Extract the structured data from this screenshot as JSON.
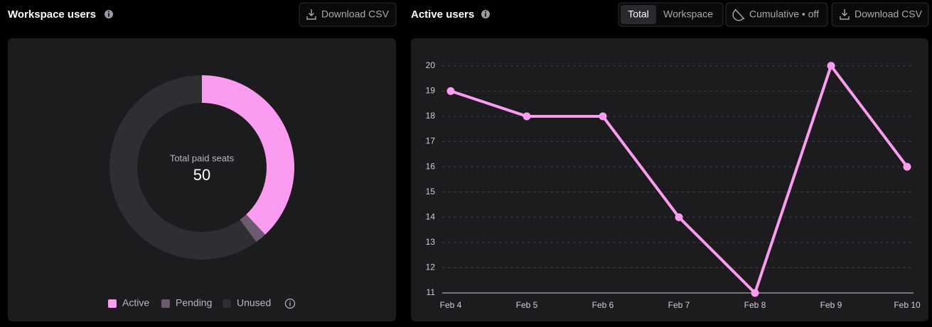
{
  "controls": {
    "left_download": "Download CSV",
    "toggle": [
      "Total",
      "Workspace"
    ],
    "cumulative": "Cumulative • off",
    "right_download": "Download CSV"
  },
  "chart_data": [
    {
      "type": "donut",
      "title": "Workspace users",
      "center_label": "Total paid seats",
      "center_value": 50,
      "categories": [
        "Active",
        "Pending",
        "Unused"
      ],
      "values": [
        19,
        1,
        30
      ],
      "colors": [
        "#fc9cf0",
        "#6c5a6e",
        "#2e2e33"
      ]
    },
    {
      "type": "line",
      "title": "Active users",
      "categories": [
        "Feb 4",
        "Feb 5",
        "Feb 6",
        "Feb 7",
        "Feb 8",
        "Feb 9",
        "Feb 10"
      ],
      "values": [
        19,
        18,
        18,
        14,
        11,
        20,
        16
      ],
      "color": "#fc9cf0",
      "ylim": [
        11,
        20.5
      ],
      "yticks": [
        11,
        12,
        13,
        14,
        15,
        16,
        17,
        18,
        19,
        20
      ],
      "grid": true
    }
  ]
}
